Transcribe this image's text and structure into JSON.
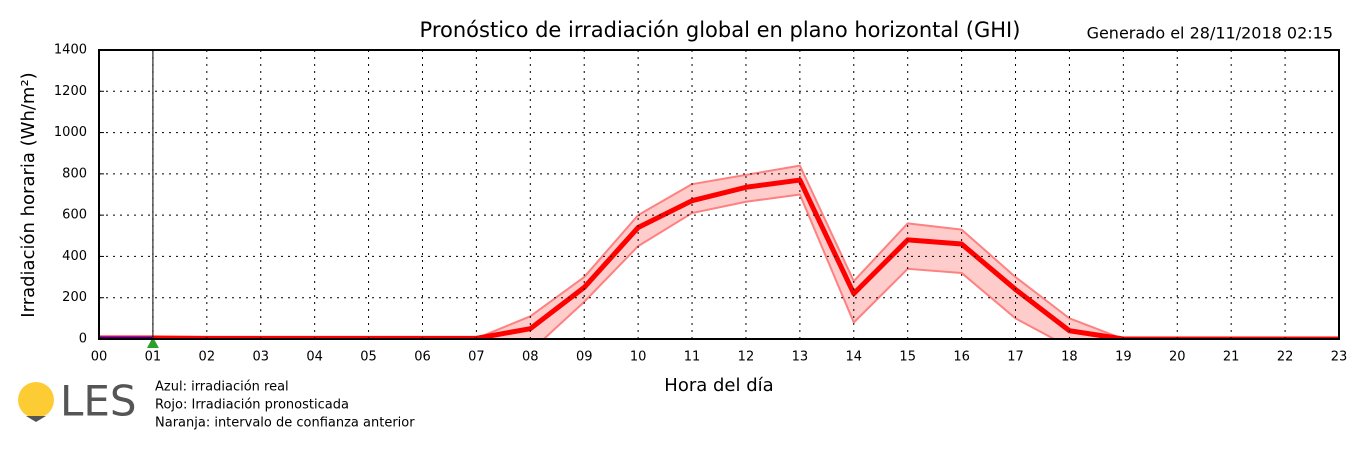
{
  "chart_data": {
    "type": "line",
    "title": "Pronóstico de irradiación global en plano horizontal (GHI)",
    "subtitle": "Generado el 28/11/2018 02:15",
    "x_label": "Hora del día",
    "y_label": "Irradiación horaria (Wh/m²)",
    "categories": [
      "00",
      "01",
      "02",
      "03",
      "04",
      "05",
      "06",
      "07",
      "08",
      "09",
      "10",
      "11",
      "12",
      "13",
      "14",
      "15",
      "16",
      "17",
      "18",
      "19",
      "20",
      "21",
      "22",
      "23"
    ],
    "series": [
      {
        "color": "#ff0000",
        "values": [
          5,
          5,
          3,
          3,
          3,
          3,
          3,
          3,
          50,
          250,
          540,
          670,
          735,
          770,
          220,
          480,
          460,
          240,
          40,
          0,
          0,
          0,
          0,
          0
        ]
      },
      {
        "color": "#0000ff",
        "values": [
          0,
          0,
          null,
          null,
          null,
          null,
          null,
          null,
          null,
          null,
          null,
          null,
          null,
          null,
          null,
          null,
          null,
          null,
          null,
          null,
          null,
          null,
          null,
          null
        ]
      }
    ],
    "band": {
      "color": "#ff8080",
      "upper": [
        5,
        5,
        3,
        3,
        3,
        3,
        3,
        3,
        110,
        300,
        600,
        750,
        795,
        840,
        280,
        560,
        530,
        300,
        100,
        0,
        0,
        0,
        0,
        0
      ],
      "lower": [
        5,
        5,
        3,
        3,
        3,
        3,
        3,
        3,
        -60,
        180,
        450,
        610,
        665,
        700,
        80,
        340,
        320,
        100,
        -40,
        0,
        0,
        0,
        0,
        0
      ]
    },
    "current_hour": "01",
    "ylim": [
      0,
      1400
    ],
    "yticks": [
      0,
      200,
      400,
      600,
      800,
      1000,
      1200,
      1400
    ],
    "grid": true,
    "legend": [
      "Azul: irradiación real",
      "Rojo: Irradiación pronosticada",
      "Naranja: intervalo de confianza anterior"
    ],
    "logo": "LES"
  }
}
